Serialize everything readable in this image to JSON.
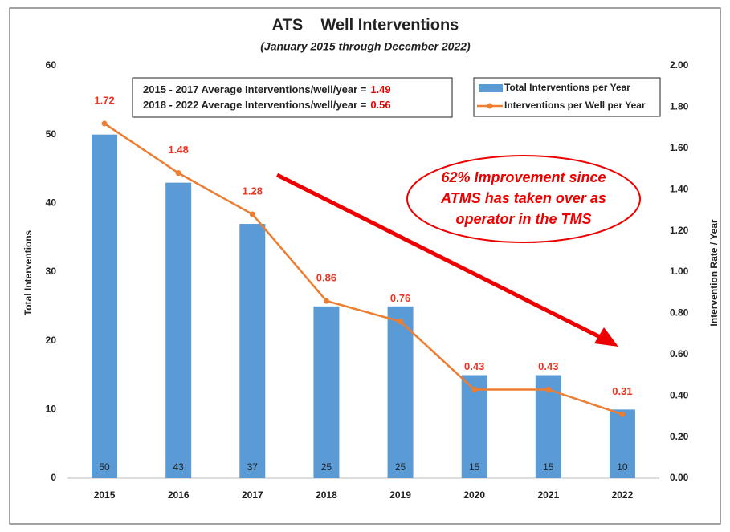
{
  "chart_data": {
    "type": "bar_line",
    "title": "ATS    Well Interventions",
    "subtitle": "(January 2015 through December 2022)",
    "y_label": "Total Interventions",
    "y2_label": "Intervention Rate / Year",
    "categories": [
      "2015",
      "2016",
      "2017",
      "2018",
      "2019",
      "2020",
      "2021",
      "2022"
    ],
    "series": [
      {
        "name": "Total Interventions per Year",
        "type": "bar",
        "color": "#5b9bd5",
        "values": [
          50,
          43,
          37,
          25,
          25,
          15,
          15,
          10
        ]
      },
      {
        "name": "Interventions per Well per Year",
        "type": "line",
        "axis": "y2",
        "color": "#ed7d31",
        "values": [
          1.72,
          1.48,
          1.28,
          0.86,
          0.76,
          0.43,
          0.43,
          0.31
        ]
      }
    ],
    "ylim": [
      0,
      60
    ],
    "yticks": [
      0,
      10,
      20,
      30,
      40,
      50,
      60
    ],
    "y2lim": [
      0,
      2
    ],
    "y2ticks": [
      {
        "value": 0,
        "label": "0.00"
      },
      {
        "value": 0.2,
        "label": "0.20"
      },
      {
        "value": 0.4,
        "label": "0.40"
      },
      {
        "value": 0.6,
        "label": "0.60"
      },
      {
        "value": 0.8,
        "label": "0.80"
      },
      {
        "value": 1,
        "label": "1.00"
      },
      {
        "value": 1.2,
        "label": "1.20"
      },
      {
        "value": 1.4,
        "label": "1.40"
      },
      {
        "value": 1.6,
        "label": "1.60"
      },
      {
        "value": 1.8,
        "label": "1.80"
      },
      {
        "value": 2,
        "label": "2.00"
      }
    ],
    "legend": "top-right",
    "annotations": [
      {
        "text": "2015 - 2017 Average Interventions/well/year =",
        "value": "1.49"
      },
      {
        "text": "2018 - 2022 Average Interventions/well/year =",
        "value": "0.56"
      }
    ],
    "callout": [
      "62% Improvement since",
      "ATMS has taken over as",
      "operator in the TMS"
    ]
  }
}
